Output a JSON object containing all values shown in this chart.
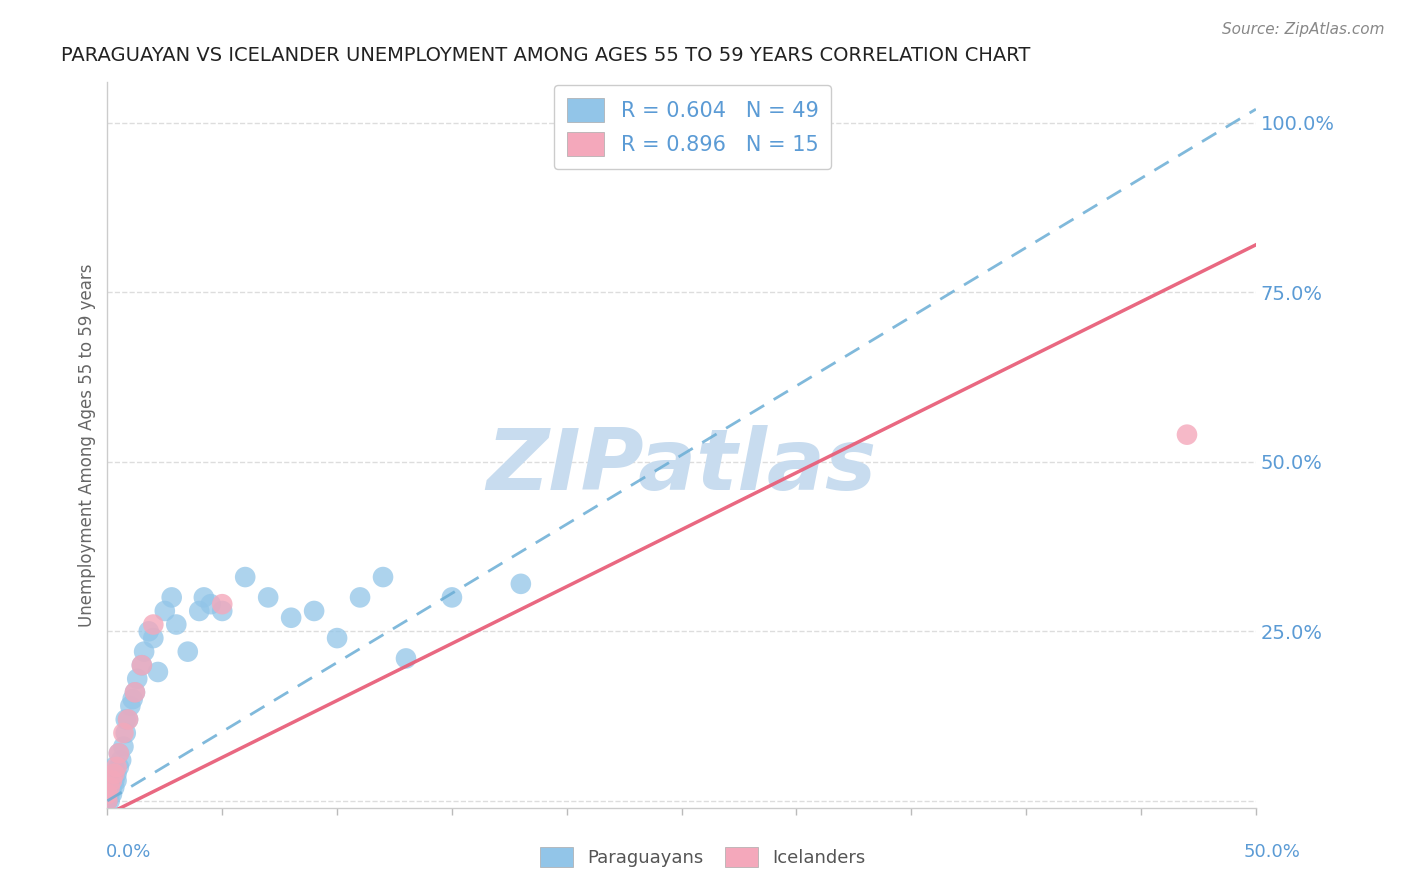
{
  "title": "PARAGUAYAN VS ICELANDER UNEMPLOYMENT AMONG AGES 55 TO 59 YEARS CORRELATION CHART",
  "source": "Source: ZipAtlas.com",
  "xlabel_bottom_left": "0.0%",
  "xlabel_bottom_right": "50.0%",
  "ylabel": "Unemployment Among Ages 55 to 59 years",
  "yticks": [
    0.0,
    0.25,
    0.5,
    0.75,
    1.0
  ],
  "ytick_labels": [
    "",
    "25.0%",
    "50.0%",
    "75.0%",
    "100.0%"
  ],
  "xlim": [
    0.0,
    0.5
  ],
  "ylim": [
    -0.01,
    1.06
  ],
  "legend_blue_r": "R = 0.604",
  "legend_blue_n": "N = 49",
  "legend_pink_r": "R = 0.896",
  "legend_pink_n": "N = 15",
  "blue_color": "#92C5E8",
  "pink_color": "#F4A8BB",
  "blue_line_color": "#6AADD5",
  "pink_line_color": "#E8607A",
  "text_color": "#5B9BD5",
  "watermark_color": "#C8DCEF",
  "watermark_text": "ZIPatlas",
  "blue_trend_x": [
    0.0,
    0.5
  ],
  "blue_trend_y": [
    0.0,
    1.02
  ],
  "pink_trend_x": [
    0.0,
    0.5
  ],
  "pink_trend_y": [
    -0.02,
    0.82
  ],
  "background_color": "#FFFFFF",
  "grid_color": "#DDDDDD",
  "blue_scatter_x": [
    0.0,
    0.0,
    0.0,
    0.0,
    0.001,
    0.001,
    0.001,
    0.002,
    0.002,
    0.002,
    0.003,
    0.003,
    0.003,
    0.004,
    0.004,
    0.005,
    0.005,
    0.006,
    0.007,
    0.008,
    0.008,
    0.009,
    0.01,
    0.011,
    0.012,
    0.013,
    0.015,
    0.016,
    0.018,
    0.02,
    0.022,
    0.025,
    0.028,
    0.03,
    0.035,
    0.04,
    0.042,
    0.045,
    0.05,
    0.06,
    0.07,
    0.08,
    0.09,
    0.1,
    0.11,
    0.12,
    0.13,
    0.15,
    0.18
  ],
  "blue_scatter_y": [
    0.0,
    0.0,
    0.01,
    0.02,
    0.0,
    0.01,
    0.02,
    0.01,
    0.02,
    0.03,
    0.02,
    0.03,
    0.05,
    0.03,
    0.04,
    0.05,
    0.07,
    0.06,
    0.08,
    0.1,
    0.12,
    0.12,
    0.14,
    0.15,
    0.16,
    0.18,
    0.2,
    0.22,
    0.25,
    0.24,
    0.19,
    0.28,
    0.3,
    0.26,
    0.22,
    0.28,
    0.3,
    0.29,
    0.28,
    0.33,
    0.3,
    0.27,
    0.28,
    0.24,
    0.3,
    0.33,
    0.21,
    0.3,
    0.32
  ],
  "pink_scatter_x": [
    0.0,
    0.0,
    0.001,
    0.002,
    0.003,
    0.004,
    0.005,
    0.007,
    0.009,
    0.012,
    0.015,
    0.02,
    0.05,
    0.28,
    0.47
  ],
  "pink_scatter_y": [
    0.0,
    0.01,
    0.02,
    0.03,
    0.04,
    0.05,
    0.07,
    0.1,
    0.12,
    0.16,
    0.2,
    0.26,
    0.29,
    1.0,
    0.54
  ]
}
